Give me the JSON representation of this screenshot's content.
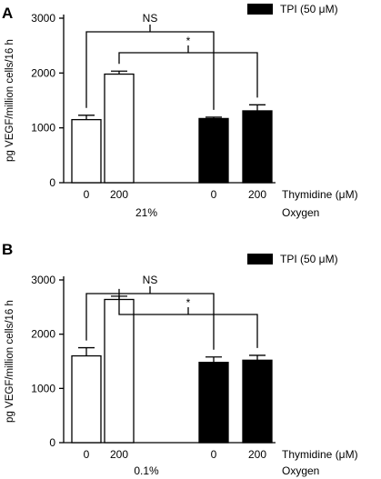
{
  "chart_data": [
    {
      "panel": "A",
      "type": "bar",
      "categories": [
        "0",
        "200",
        "0",
        "200"
      ],
      "values": [
        1150,
        1980,
        1170,
        1310
      ],
      "errors": [
        80,
        55,
        25,
        110
      ],
      "fill": [
        "white",
        "white",
        "black",
        "black"
      ],
      "ylabel": "pg VEGF/million cells/16 h",
      "ylim": [
        0,
        3000
      ],
      "yticks": [
        "0",
        "1000",
        "2000",
        "3000"
      ],
      "xlabel": "Thymidine (μM)",
      "oxygen_value": "21%",
      "oxygen_label": "Oxygen",
      "legend": "TPI (50 μM)",
      "brackets": [
        {
          "from": 0,
          "to": 2,
          "label": "NS"
        },
        {
          "from": 1,
          "to": 3,
          "label": "*"
        }
      ]
    },
    {
      "panel": "B",
      "type": "bar",
      "categories": [
        "0",
        "200",
        "0",
        "200"
      ],
      "values": [
        1600,
        2640,
        1480,
        1520
      ],
      "errors": [
        150,
        60,
        100,
        90
      ],
      "fill": [
        "white",
        "white",
        "black",
        "black"
      ],
      "ylabel": "pg VEGF/million cells/16 h",
      "ylim": [
        0,
        3000
      ],
      "yticks": [
        "0",
        "1000",
        "2000",
        "3000"
      ],
      "xlabel": "Thymidine (μM)",
      "oxygen_value": "0.1%",
      "oxygen_label": "Oxygen",
      "legend": "TPI (50 μM)",
      "brackets": [
        {
          "from": 0,
          "to": 2,
          "label": "NS"
        },
        {
          "from": 1,
          "to": 3,
          "label": "*"
        }
      ]
    }
  ]
}
